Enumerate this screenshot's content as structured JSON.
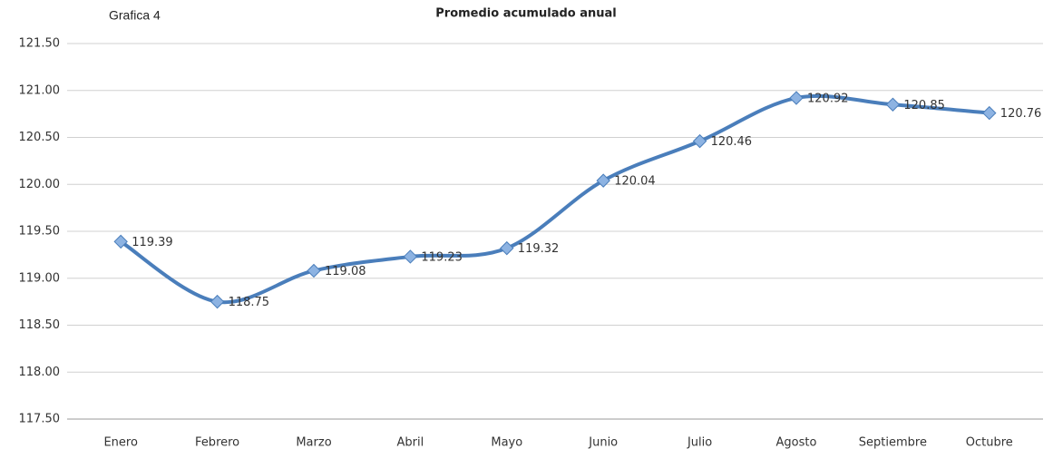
{
  "chart_data": {
    "type": "line",
    "note": "Grafica 4",
    "title": "Promedio acumulado anual",
    "categories": [
      "Enero",
      "Febrero",
      "Marzo",
      "Abril",
      "Mayo",
      "Junio",
      "Julio",
      "Agosto",
      "Septiembre",
      "Octubre"
    ],
    "series": [
      {
        "name": "Promedio acumulado anual",
        "color": "#4a7ebb",
        "values": [
          119.39,
          118.75,
          119.08,
          119.23,
          119.32,
          120.04,
          120.46,
          120.92,
          120.85,
          120.76
        ]
      }
    ],
    "ylim": [
      117.5,
      121.5
    ],
    "yticks": [
      {
        "value": 117.5,
        "label": "117.50"
      },
      {
        "value": 118,
        "label": "118.00"
      },
      {
        "value": 118.5,
        "label": "118.50"
      },
      {
        "value": 119,
        "label": "119.00"
      },
      {
        "value": 119.5,
        "label": "119.50"
      },
      {
        "value": 120,
        "label": "120.00"
      },
      {
        "value": 120.5,
        "label": "120.50"
      },
      {
        "value": 121,
        "label": "121.00"
      },
      {
        "value": 121.5,
        "label": "121.50"
      }
    ],
    "grid": true,
    "smooth": true
  }
}
